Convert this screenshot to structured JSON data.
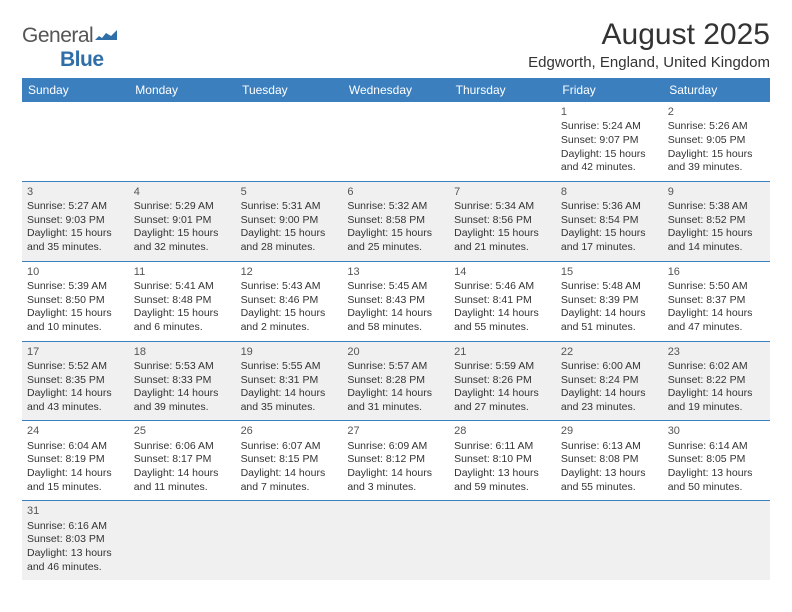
{
  "brand": {
    "part1": "General",
    "part2": "Blue"
  },
  "title": "August 2025",
  "location": "Edgworth, England, United Kingdom",
  "headerColor": "#3b7fbf",
  "weekdays": [
    "Sunday",
    "Monday",
    "Tuesday",
    "Wednesday",
    "Thursday",
    "Friday",
    "Saturday"
  ],
  "weeks": [
    [
      null,
      null,
      null,
      null,
      null,
      {
        "day": "1",
        "sunrise": "5:24 AM",
        "sunset": "9:07 PM",
        "daylight": "15 hours and 42 minutes."
      },
      {
        "day": "2",
        "sunrise": "5:26 AM",
        "sunset": "9:05 PM",
        "daylight": "15 hours and 39 minutes."
      }
    ],
    [
      {
        "day": "3",
        "sunrise": "5:27 AM",
        "sunset": "9:03 PM",
        "daylight": "15 hours and 35 minutes."
      },
      {
        "day": "4",
        "sunrise": "5:29 AM",
        "sunset": "9:01 PM",
        "daylight": "15 hours and 32 minutes."
      },
      {
        "day": "5",
        "sunrise": "5:31 AM",
        "sunset": "9:00 PM",
        "daylight": "15 hours and 28 minutes."
      },
      {
        "day": "6",
        "sunrise": "5:32 AM",
        "sunset": "8:58 PM",
        "daylight": "15 hours and 25 minutes."
      },
      {
        "day": "7",
        "sunrise": "5:34 AM",
        "sunset": "8:56 PM",
        "daylight": "15 hours and 21 minutes."
      },
      {
        "day": "8",
        "sunrise": "5:36 AM",
        "sunset": "8:54 PM",
        "daylight": "15 hours and 17 minutes."
      },
      {
        "day": "9",
        "sunrise": "5:38 AM",
        "sunset": "8:52 PM",
        "daylight": "15 hours and 14 minutes."
      }
    ],
    [
      {
        "day": "10",
        "sunrise": "5:39 AM",
        "sunset": "8:50 PM",
        "daylight": "15 hours and 10 minutes."
      },
      {
        "day": "11",
        "sunrise": "5:41 AM",
        "sunset": "8:48 PM",
        "daylight": "15 hours and 6 minutes."
      },
      {
        "day": "12",
        "sunrise": "5:43 AM",
        "sunset": "8:46 PM",
        "daylight": "15 hours and 2 minutes."
      },
      {
        "day": "13",
        "sunrise": "5:45 AM",
        "sunset": "8:43 PM",
        "daylight": "14 hours and 58 minutes."
      },
      {
        "day": "14",
        "sunrise": "5:46 AM",
        "sunset": "8:41 PM",
        "daylight": "14 hours and 55 minutes."
      },
      {
        "day": "15",
        "sunrise": "5:48 AM",
        "sunset": "8:39 PM",
        "daylight": "14 hours and 51 minutes."
      },
      {
        "day": "16",
        "sunrise": "5:50 AM",
        "sunset": "8:37 PM",
        "daylight": "14 hours and 47 minutes."
      }
    ],
    [
      {
        "day": "17",
        "sunrise": "5:52 AM",
        "sunset": "8:35 PM",
        "daylight": "14 hours and 43 minutes."
      },
      {
        "day": "18",
        "sunrise": "5:53 AM",
        "sunset": "8:33 PM",
        "daylight": "14 hours and 39 minutes."
      },
      {
        "day": "19",
        "sunrise": "5:55 AM",
        "sunset": "8:31 PM",
        "daylight": "14 hours and 35 minutes."
      },
      {
        "day": "20",
        "sunrise": "5:57 AM",
        "sunset": "8:28 PM",
        "daylight": "14 hours and 31 minutes."
      },
      {
        "day": "21",
        "sunrise": "5:59 AM",
        "sunset": "8:26 PM",
        "daylight": "14 hours and 27 minutes."
      },
      {
        "day": "22",
        "sunrise": "6:00 AM",
        "sunset": "8:24 PM",
        "daylight": "14 hours and 23 minutes."
      },
      {
        "day": "23",
        "sunrise": "6:02 AM",
        "sunset": "8:22 PM",
        "daylight": "14 hours and 19 minutes."
      }
    ],
    [
      {
        "day": "24",
        "sunrise": "6:04 AM",
        "sunset": "8:19 PM",
        "daylight": "14 hours and 15 minutes."
      },
      {
        "day": "25",
        "sunrise": "6:06 AM",
        "sunset": "8:17 PM",
        "daylight": "14 hours and 11 minutes."
      },
      {
        "day": "26",
        "sunrise": "6:07 AM",
        "sunset": "8:15 PM",
        "daylight": "14 hours and 7 minutes."
      },
      {
        "day": "27",
        "sunrise": "6:09 AM",
        "sunset": "8:12 PM",
        "daylight": "14 hours and 3 minutes."
      },
      {
        "day": "28",
        "sunrise": "6:11 AM",
        "sunset": "8:10 PM",
        "daylight": "13 hours and 59 minutes."
      },
      {
        "day": "29",
        "sunrise": "6:13 AM",
        "sunset": "8:08 PM",
        "daylight": "13 hours and 55 minutes."
      },
      {
        "day": "30",
        "sunrise": "6:14 AM",
        "sunset": "8:05 PM",
        "daylight": "13 hours and 50 minutes."
      }
    ],
    [
      {
        "day": "31",
        "sunrise": "6:16 AM",
        "sunset": "8:03 PM",
        "daylight": "13 hours and 46 minutes."
      },
      null,
      null,
      null,
      null,
      null,
      null
    ]
  ],
  "labels": {
    "sunrise": "Sunrise: ",
    "sunset": "Sunset: ",
    "daylight": "Daylight: "
  }
}
